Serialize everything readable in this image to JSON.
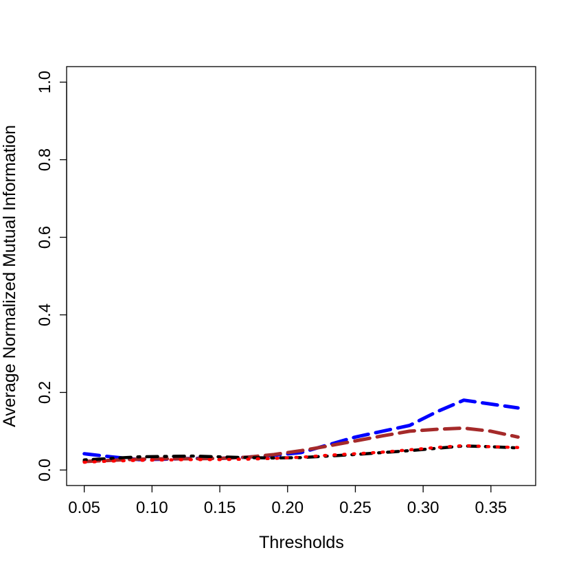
{
  "chart_data": {
    "type": "line",
    "title": "",
    "xlabel": "Thresholds",
    "ylabel": "Average Normalized Mutual Information",
    "xlim": [
      0.037,
      0.383
    ],
    "ylim": [
      -0.04,
      1.04
    ],
    "x_ticks": [
      0.05,
      0.1,
      0.15,
      0.2,
      0.25,
      0.3,
      0.35
    ],
    "x_tick_labels": [
      "0.05",
      "0.10",
      "0.15",
      "0.20",
      "0.25",
      "0.30",
      "0.35"
    ],
    "y_ticks": [
      0.0,
      0.2,
      0.4,
      0.6,
      0.8,
      1.0
    ],
    "y_tick_labels": [
      "0.0",
      "0.2",
      "0.4",
      "0.6",
      "0.8",
      "1.0"
    ],
    "grid": false,
    "legend": "none",
    "x": [
      0.05,
      0.07,
      0.09,
      0.11,
      0.13,
      0.15,
      0.17,
      0.19,
      0.21,
      0.23,
      0.25,
      0.27,
      0.29,
      0.31,
      0.33,
      0.35,
      0.37
    ],
    "series": [
      {
        "color": "#0000ff",
        "dash": "long-dash",
        "values": [
          0.042,
          0.034,
          0.027,
          0.028,
          0.03,
          0.03,
          0.033,
          0.038,
          0.045,
          0.065,
          0.085,
          0.1,
          0.115,
          0.15,
          0.18,
          0.17,
          0.16
        ]
      },
      {
        "color": "#a52a2a",
        "dash": "long-dash",
        "values": [
          0.022,
          0.025,
          0.028,
          0.029,
          0.029,
          0.03,
          0.033,
          0.04,
          0.05,
          0.062,
          0.075,
          0.088,
          0.1,
          0.105,
          0.108,
          0.1,
          0.085
        ]
      },
      {
        "color": "#000000",
        "dash": "dot-dash",
        "values": [
          0.026,
          0.03,
          0.034,
          0.035,
          0.036,
          0.034,
          0.032,
          0.031,
          0.032,
          0.036,
          0.04,
          0.045,
          0.05,
          0.056,
          0.062,
          0.06,
          0.057
        ]
      },
      {
        "color": "#ff0000",
        "dash": "dotted",
        "values": [
          0.02,
          0.023,
          0.025,
          0.026,
          0.027,
          0.027,
          0.028,
          0.03,
          0.033,
          0.038,
          0.042,
          0.046,
          0.052,
          0.058,
          0.063,
          0.06,
          0.058
        ]
      }
    ]
  }
}
